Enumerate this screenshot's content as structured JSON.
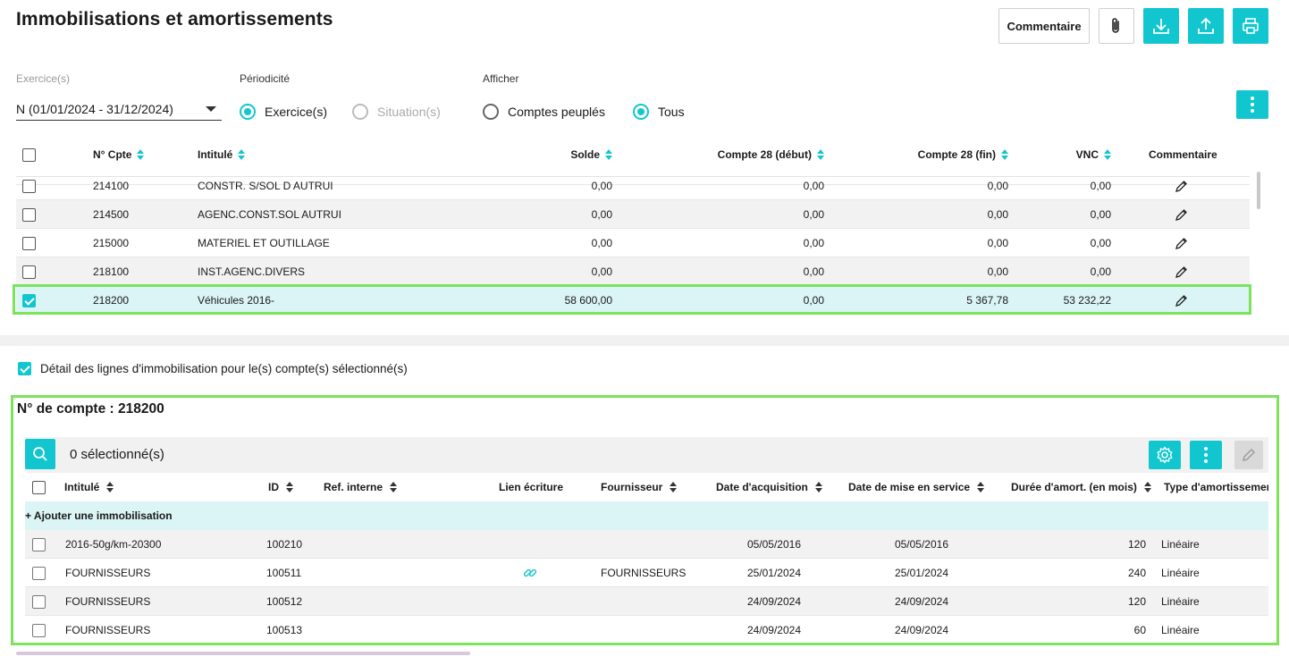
{
  "page": {
    "title": "Immobilisations et amortissements"
  },
  "actions": {
    "comment_label": "Commentaire"
  },
  "filters": {
    "exercise_label": "Exercice(s)",
    "exercise_value": "N (01/01/2024 - 31/12/2024)",
    "periodicity_label": "Périodicité",
    "periodicity_options": [
      "Exercice(s)",
      "Situation(s)"
    ],
    "display_label": "Afficher",
    "display_options": [
      "Comptes peuplés",
      "Tous"
    ]
  },
  "accounts_table": {
    "columns": [
      "N° Cpte",
      "Intitulé",
      "Solde",
      "Compte 28 (début)",
      "Compte 28 (fin)",
      "VNC",
      "Commentaire"
    ],
    "rows": [
      {
        "num": "214100",
        "label": "CONSTR. S/SOL D AUTRUI",
        "solde": "0,00",
        "c28_debut": "0,00",
        "c28_fin": "0,00",
        "vnc": "0,00",
        "checked": false
      },
      {
        "num": "214500",
        "label": "AGENC.CONST.SOL AUTRUI",
        "solde": "0,00",
        "c28_debut": "0,00",
        "c28_fin": "0,00",
        "vnc": "0,00",
        "checked": false
      },
      {
        "num": "215000",
        "label": "MATERIEL ET OUTILLAGE",
        "solde": "0,00",
        "c28_debut": "0,00",
        "c28_fin": "0,00",
        "vnc": "0,00",
        "checked": false
      },
      {
        "num": "218100",
        "label": "INST.AGENC.DIVERS",
        "solde": "0,00",
        "c28_debut": "0,00",
        "c28_fin": "0,00",
        "vnc": "0,00",
        "checked": false
      },
      {
        "num": "218200",
        "label": "Véhicules 2016-",
        "solde": "58 600,00",
        "c28_debut": "0,00",
        "c28_fin": "5 367,78",
        "vnc": "53 232,22",
        "checked": true
      }
    ]
  },
  "detail": {
    "toggle_label": "Détail des lignes d'immobilisation pour le(s) compte(s) sélectionné(s)",
    "account_title": "N° de compte : 218200",
    "selected_count": "0 sélectionné(s)",
    "columns": [
      "Intitulé",
      "ID",
      "Ref. interne",
      "Lien écriture",
      "Fournisseur",
      "Date d'acquisition",
      "Date de mise en service",
      "Durée d'amort. (en mois)",
      "Type d'amortissemer"
    ],
    "add_label": "+ Ajouter une immobilisation",
    "rows": [
      {
        "label": "2016-50g/km-20300",
        "id": "100210",
        "ref": "",
        "link": false,
        "supplier": "",
        "acq": "05/05/2016",
        "service": "05/05/2016",
        "duration": "120",
        "type": "Linéaire"
      },
      {
        "label": "FOURNISSEURS",
        "id": "100511",
        "ref": "",
        "link": true,
        "supplier": "FOURNISSEURS",
        "acq": "25/01/2024",
        "service": "25/01/2024",
        "duration": "240",
        "type": "Linéaire"
      },
      {
        "label": "FOURNISSEURS",
        "id": "100512",
        "ref": "",
        "link": false,
        "supplier": "",
        "acq": "24/09/2024",
        "service": "24/09/2024",
        "duration": "120",
        "type": "Linéaire"
      },
      {
        "label": "FOURNISSEURS",
        "id": "100513",
        "ref": "",
        "link": false,
        "supplier": "",
        "acq": "24/09/2024",
        "service": "24/09/2024",
        "duration": "60",
        "type": "Linéaire"
      }
    ]
  },
  "colors": {
    "accent": "#12c6cf",
    "highlight": "#7be35c",
    "selected_row": "#dbf4f5"
  }
}
